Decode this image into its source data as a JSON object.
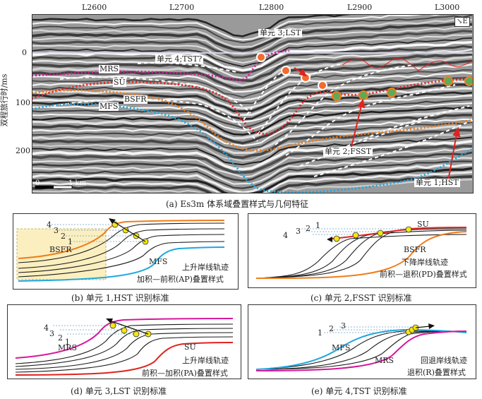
{
  "panel_a": {
    "top_ticks": [
      "L2600",
      "L2700",
      "L2800",
      "L2900",
      "L3000"
    ],
    "y_ticks": [
      "0",
      "100",
      "200"
    ],
    "y_axis_title": "双程旅行时/ms",
    "direction": "E",
    "scale_label": "1 km",
    "scale_zero": "0",
    "surfaces": {
      "mrs": "MRS",
      "su": "SU",
      "bsfr": "BSFR",
      "mfs": "MFS"
    },
    "units": {
      "u4": "单元 4;TST?",
      "u3": "单元 3;LST",
      "u2": "单元 2;FSST",
      "u1": "单元 1;HST"
    },
    "caption": "(a) Es3m 体系域叠置样式与几何特征"
  },
  "panel_b": {
    "numbers": [
      "4",
      "3",
      "2",
      "1"
    ],
    "bsfr": "BSFR",
    "mfs": "MFS",
    "line1": "上升岸线轨迹",
    "line2": "加积—前积(AP)叠置样式",
    "caption": "(b) 单元 1,HST 识别标准"
  },
  "panel_c": {
    "numbers": [
      "4",
      "3",
      "2",
      "1"
    ],
    "su": "SU",
    "bsfr": "BSFR",
    "line1": "下降岸线轨迹",
    "line2": "前积—退积(PD)叠置样式",
    "caption": "(c) 单元 2,FSST 识别标准"
  },
  "panel_d": {
    "numbers": [
      "4",
      "3",
      "2",
      "1"
    ],
    "mrs": "MRS",
    "su": "SU",
    "line1": "上升岸线轨迹",
    "line2": "前积—加积(PA)叠置样式",
    "caption": "(d) 单元 3,LST 识别标准"
  },
  "panel_e": {
    "numbers": [
      "1",
      "2",
      "3"
    ],
    "mfs": "MFS",
    "mrs": "MRS",
    "line1": "回退岸线轨迹",
    "line2": "退积(R)叠置样式",
    "caption": "(e) 单元 4,TST 识别标准"
  },
  "colors": {
    "mrs": "#d6189a",
    "su": "#e0231f",
    "bsfr": "#ef7d1a",
    "mfs": "#1fa7e0",
    "marker_yellow": "#f5e60f"
  }
}
